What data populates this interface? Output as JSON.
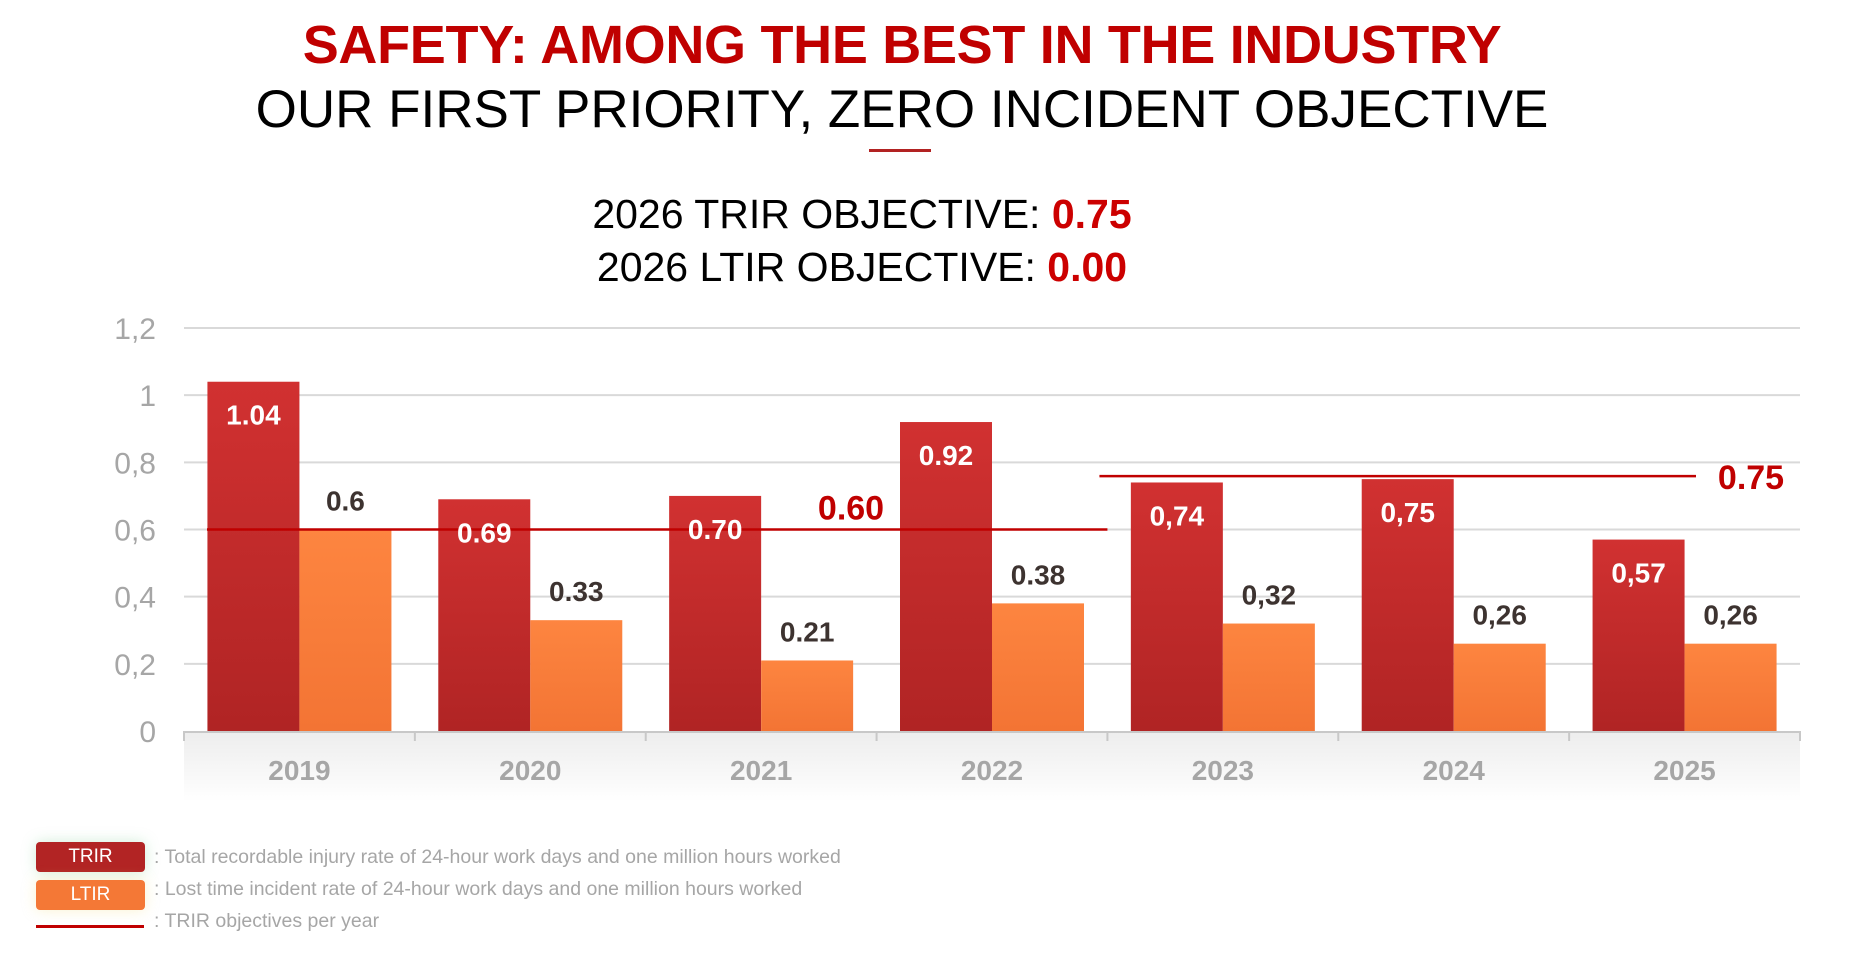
{
  "header": {
    "title": "SAFETY: AMONG THE BEST IN THE INDUSTRY",
    "subtitle": "OUR FIRST PRIORITY, ZERO INCIDENT OBJECTIVE",
    "objectives": [
      {
        "label": "2026 TRIR OBJECTIVE: ",
        "value": "0.75"
      },
      {
        "label": "2026 LTIR OBJECTIVE: ",
        "value": "0.00"
      }
    ]
  },
  "colors": {
    "accent_red": "#c00000",
    "trir": "#c62a2a",
    "ltir": "#fa7d3c",
    "objective_line": "#c00000",
    "axis_text": "#a6a6a6",
    "data_label_dark": "#3d3330"
  },
  "chart_data": {
    "type": "bar",
    "title": "",
    "xlabel": "",
    "ylabel": "",
    "ylim": [
      0,
      1.2
    ],
    "yticks": [
      0,
      0.2,
      0.4,
      0.6,
      0.8,
      1.0,
      1.2
    ],
    "ytick_labels": [
      "0",
      "0,2",
      "0,4",
      "0,6",
      "0,8",
      "1",
      "1,2"
    ],
    "grid": true,
    "categories": [
      "2019",
      "2020",
      "2021",
      "2022",
      "2023",
      "2024",
      "2025"
    ],
    "series": [
      {
        "name": "TRIR",
        "values": [
          1.04,
          0.69,
          0.7,
          0.92,
          0.74,
          0.75,
          0.57
        ],
        "labels": [
          "1.04",
          "0.69",
          "0.70",
          "0.92",
          "0,74",
          "0,75",
          "0,57"
        ]
      },
      {
        "name": "LTIR",
        "values": [
          0.6,
          0.33,
          0.21,
          0.38,
          0.32,
          0.26,
          0.26
        ],
        "labels": [
          "0.6",
          "0.33",
          "0.21",
          "0.38",
          "0,32",
          "0,26",
          "0,26"
        ]
      }
    ],
    "objective_lines": [
      {
        "name": "TRIR objective 2019-2022",
        "value": 0.6,
        "from": "2019",
        "to": "2022",
        "label": "0.60"
      },
      {
        "name": "TRIR objective 2023-2025",
        "value": 0.75,
        "from": "2023",
        "to": "2025",
        "label": "0.75"
      }
    ],
    "legend": {
      "placement": "bottom-left",
      "items": [
        {
          "key": "TRIR",
          "text": ": Total recordable injury rate of 24-hour work days and one million hours worked"
        },
        {
          "key": "LTIR",
          "text": ": Lost time incident rate of 24-hour work days and one million hours worked"
        },
        {
          "key": "line",
          "text": ": TRIR objectives per year"
        }
      ]
    }
  }
}
